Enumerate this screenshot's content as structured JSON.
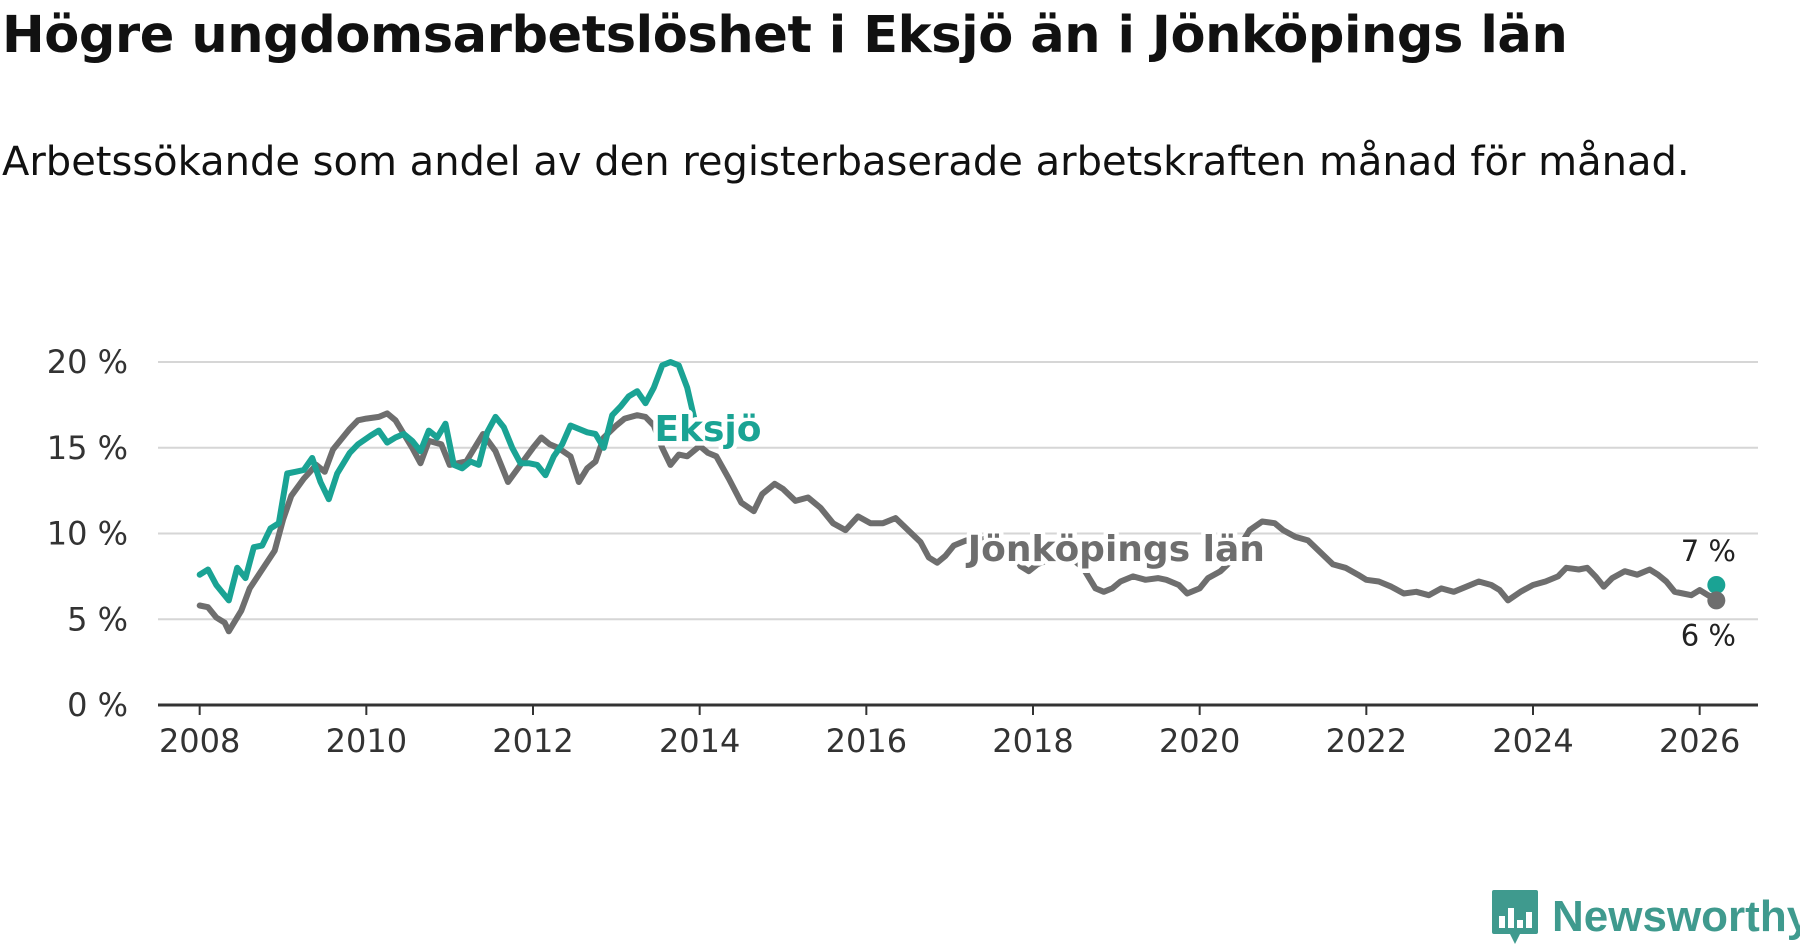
{
  "header": {
    "title": "Högre ungdomsarbetslöshet i Eksjö än i Jönköpings län",
    "subtitle": "Arbetssökande som andel av den registerbaserade arbetskraften månad för månad."
  },
  "brand": {
    "name": "Newsworthy",
    "color": "#3f9a8e"
  },
  "chart_data": {
    "type": "line",
    "title": "Högre ungdomsarbetslöshet i Eksjö än i Jönköpings län",
    "subtitle": "Arbetssökande som andel av den registerbaserade arbetskraften månad för månad.",
    "xlabel": "",
    "ylabel": "",
    "xlim": [
      2007.5,
      2026.7
    ],
    "ylim": [
      0,
      20
    ],
    "grid": true,
    "y_ticks": [
      0,
      5,
      10,
      15,
      20
    ],
    "y_tick_labels": [
      "0 %",
      "5 %",
      "10 %",
      "15 %",
      "20 %"
    ],
    "x_ticks": [
      2008,
      2010,
      2012,
      2014,
      2016,
      2018,
      2020,
      2022,
      2024,
      2026
    ],
    "x_tick_labels": [
      "2008",
      "2010",
      "2012",
      "2014",
      "2016",
      "2018",
      "2020",
      "2022",
      "2024",
      "2026"
    ],
    "series": [
      {
        "name": "Jönköpings län",
        "color": "#6e6e6e",
        "end_label": "6 %",
        "points": [
          [
            2008.0,
            5.8
          ],
          [
            2008.1,
            5.7
          ],
          [
            2008.2,
            5.1
          ],
          [
            2008.3,
            4.8
          ],
          [
            2008.35,
            4.3
          ],
          [
            2008.5,
            5.5
          ],
          [
            2008.6,
            6.8
          ],
          [
            2008.75,
            7.9
          ],
          [
            2008.9,
            9.0
          ],
          [
            2009.0,
            10.8
          ],
          [
            2009.1,
            12.2
          ],
          [
            2009.25,
            13.2
          ],
          [
            2009.4,
            14.0
          ],
          [
            2009.5,
            13.6
          ],
          [
            2009.6,
            14.9
          ],
          [
            2009.8,
            16.1
          ],
          [
            2009.9,
            16.6
          ],
          [
            2010.0,
            16.7
          ],
          [
            2010.15,
            16.8
          ],
          [
            2010.25,
            17.0
          ],
          [
            2010.35,
            16.6
          ],
          [
            2010.45,
            15.8
          ],
          [
            2010.55,
            15.0
          ],
          [
            2010.65,
            14.1
          ],
          [
            2010.75,
            15.4
          ],
          [
            2010.9,
            15.2
          ],
          [
            2011.0,
            14.0
          ],
          [
            2011.2,
            14.2
          ],
          [
            2011.4,
            15.8
          ],
          [
            2011.55,
            14.8
          ],
          [
            2011.7,
            13.0
          ],
          [
            2011.85,
            14.0
          ],
          [
            2012.0,
            15.0
          ],
          [
            2012.1,
            15.6
          ],
          [
            2012.2,
            15.2
          ],
          [
            2012.3,
            15.0
          ],
          [
            2012.45,
            14.5
          ],
          [
            2012.55,
            13.0
          ],
          [
            2012.65,
            13.8
          ],
          [
            2012.75,
            14.2
          ],
          [
            2012.85,
            15.6
          ],
          [
            2013.0,
            16.3
          ],
          [
            2013.1,
            16.7
          ],
          [
            2013.25,
            16.9
          ],
          [
            2013.35,
            16.8
          ],
          [
            2013.45,
            16.3
          ],
          [
            2013.55,
            15.0
          ],
          [
            2013.65,
            14.0
          ],
          [
            2013.75,
            14.6
          ],
          [
            2013.85,
            14.5
          ],
          [
            2014.0,
            15.1
          ],
          [
            2014.1,
            14.7
          ],
          [
            2014.2,
            14.5
          ],
          [
            2014.35,
            13.2
          ],
          [
            2014.5,
            11.8
          ],
          [
            2014.65,
            11.3
          ],
          [
            2014.75,
            12.3
          ],
          [
            2014.9,
            12.9
          ],
          [
            2015.0,
            12.6
          ],
          [
            2015.15,
            11.9
          ],
          [
            2015.3,
            12.1
          ],
          [
            2015.45,
            11.5
          ],
          [
            2015.6,
            10.6
          ],
          [
            2015.75,
            10.2
          ],
          [
            2015.9,
            11.0
          ],
          [
            2016.05,
            10.6
          ],
          [
            2016.2,
            10.6
          ],
          [
            2016.35,
            10.9
          ],
          [
            2016.5,
            10.2
          ],
          [
            2016.65,
            9.5
          ],
          [
            2016.75,
            8.6
          ],
          [
            2016.85,
            8.3
          ],
          [
            2016.95,
            8.7
          ],
          [
            2017.05,
            9.3
          ],
          [
            2017.2,
            9.6
          ],
          [
            2017.3,
            9.3
          ],
          [
            2017.45,
            9.8
          ],
          [
            2017.6,
            9.5
          ],
          [
            2017.75,
            9.1
          ],
          [
            2017.85,
            8.1
          ],
          [
            2017.95,
            7.8
          ],
          [
            2018.05,
            8.2
          ],
          [
            2018.2,
            8.5
          ],
          [
            2018.35,
            8.5
          ],
          [
            2018.5,
            8.4
          ],
          [
            2018.6,
            8.0
          ],
          [
            2018.75,
            6.8
          ],
          [
            2018.85,
            6.6
          ],
          [
            2018.95,
            6.8
          ],
          [
            2019.05,
            7.2
          ],
          [
            2019.2,
            7.5
          ],
          [
            2019.35,
            7.3
          ],
          [
            2019.5,
            7.4
          ],
          [
            2019.6,
            7.3
          ],
          [
            2019.75,
            7.0
          ],
          [
            2019.85,
            6.5
          ],
          [
            2020.0,
            6.8
          ],
          [
            2020.1,
            7.4
          ],
          [
            2020.25,
            7.8
          ],
          [
            2020.4,
            8.5
          ],
          [
            2020.5,
            9.4
          ],
          [
            2020.6,
            10.2
          ],
          [
            2020.75,
            10.7
          ],
          [
            2020.9,
            10.6
          ],
          [
            2021.0,
            10.2
          ],
          [
            2021.15,
            9.8
          ],
          [
            2021.3,
            9.6
          ],
          [
            2021.45,
            8.9
          ],
          [
            2021.6,
            8.2
          ],
          [
            2021.75,
            8.0
          ],
          [
            2021.9,
            7.6
          ],
          [
            2022.0,
            7.3
          ],
          [
            2022.15,
            7.2
          ],
          [
            2022.3,
            6.9
          ],
          [
            2022.45,
            6.5
          ],
          [
            2022.6,
            6.6
          ],
          [
            2022.75,
            6.4
          ],
          [
            2022.9,
            6.8
          ],
          [
            2023.05,
            6.6
          ],
          [
            2023.2,
            6.9
          ],
          [
            2023.35,
            7.2
          ],
          [
            2023.5,
            7.0
          ],
          [
            2023.6,
            6.7
          ],
          [
            2023.7,
            6.1
          ],
          [
            2023.85,
            6.6
          ],
          [
            2024.0,
            7.0
          ],
          [
            2024.15,
            7.2
          ],
          [
            2024.3,
            7.5
          ],
          [
            2024.4,
            8.0
          ],
          [
            2024.55,
            7.9
          ],
          [
            2024.65,
            8.0
          ],
          [
            2024.75,
            7.5
          ],
          [
            2024.85,
            6.9
          ],
          [
            2024.95,
            7.4
          ],
          [
            2025.1,
            7.8
          ],
          [
            2025.25,
            7.6
          ],
          [
            2025.4,
            7.9
          ],
          [
            2025.5,
            7.6
          ],
          [
            2025.6,
            7.2
          ],
          [
            2025.7,
            6.6
          ],
          [
            2025.8,
            6.5
          ],
          [
            2025.9,
            6.4
          ],
          [
            2026.0,
            6.7
          ],
          [
            2026.1,
            6.4
          ],
          [
            2026.2,
            6.2
          ]
        ]
      },
      {
        "name": "Eksjö",
        "color": "#1aa394",
        "end_label": "7 %",
        "points": [
          [
            2008.0,
            7.6
          ],
          [
            2008.1,
            7.9
          ],
          [
            2008.2,
            7.0
          ],
          [
            2008.35,
            6.1
          ],
          [
            2008.45,
            8.0
          ],
          [
            2008.55,
            7.4
          ],
          [
            2008.65,
            9.2
          ],
          [
            2008.75,
            9.3
          ],
          [
            2008.85,
            10.3
          ],
          [
            2008.95,
            10.6
          ],
          [
            2009.05,
            13.5
          ],
          [
            2009.15,
            13.6
          ],
          [
            2009.25,
            13.7
          ],
          [
            2009.35,
            14.4
          ],
          [
            2009.45,
            13.0
          ],
          [
            2009.55,
            12.0
          ],
          [
            2009.65,
            13.5
          ],
          [
            2009.8,
            14.7
          ],
          [
            2009.9,
            15.2
          ],
          [
            2010.05,
            15.7
          ],
          [
            2010.15,
            16.0
          ],
          [
            2010.25,
            15.3
          ],
          [
            2010.35,
            15.6
          ],
          [
            2010.45,
            15.8
          ],
          [
            2010.55,
            15.4
          ],
          [
            2010.65,
            14.8
          ],
          [
            2010.75,
            16.0
          ],
          [
            2010.85,
            15.6
          ],
          [
            2010.95,
            16.4
          ],
          [
            2011.05,
            14.0
          ],
          [
            2011.15,
            13.8
          ],
          [
            2011.25,
            14.2
          ],
          [
            2011.35,
            14.0
          ],
          [
            2011.45,
            15.9
          ],
          [
            2011.55,
            16.8
          ],
          [
            2011.65,
            16.2
          ],
          [
            2011.75,
            15.0
          ],
          [
            2011.85,
            14.1
          ],
          [
            2011.95,
            14.1
          ],
          [
            2012.05,
            14.0
          ],
          [
            2012.15,
            13.4
          ],
          [
            2012.25,
            14.5
          ],
          [
            2012.35,
            15.2
          ],
          [
            2012.45,
            16.3
          ],
          [
            2012.55,
            16.1
          ],
          [
            2012.65,
            15.9
          ],
          [
            2012.75,
            15.8
          ],
          [
            2012.85,
            15.0
          ],
          [
            2012.95,
            16.9
          ],
          [
            2013.05,
            17.4
          ],
          [
            2013.15,
            18.0
          ],
          [
            2013.25,
            18.3
          ],
          [
            2013.35,
            17.6
          ],
          [
            2013.45,
            18.5
          ],
          [
            2013.55,
            19.8
          ],
          [
            2013.65,
            20.0
          ],
          [
            2013.75,
            19.8
          ],
          [
            2013.85,
            18.5
          ],
          [
            2013.95,
            16.4
          ]
        ]
      }
    ],
    "series_labels": [
      {
        "series": "Eksjö",
        "text": "Eksjö"
      },
      {
        "series": "Jönköpings län",
        "text": "Jönköpings län"
      }
    ],
    "end_points": [
      {
        "series": "Eksjö",
        "x": 2026.2,
        "y": 7.0,
        "label": "7 %"
      },
      {
        "series": "Jönköpings län",
        "x": 2026.2,
        "y": 6.1,
        "label": "6 %"
      }
    ]
  }
}
